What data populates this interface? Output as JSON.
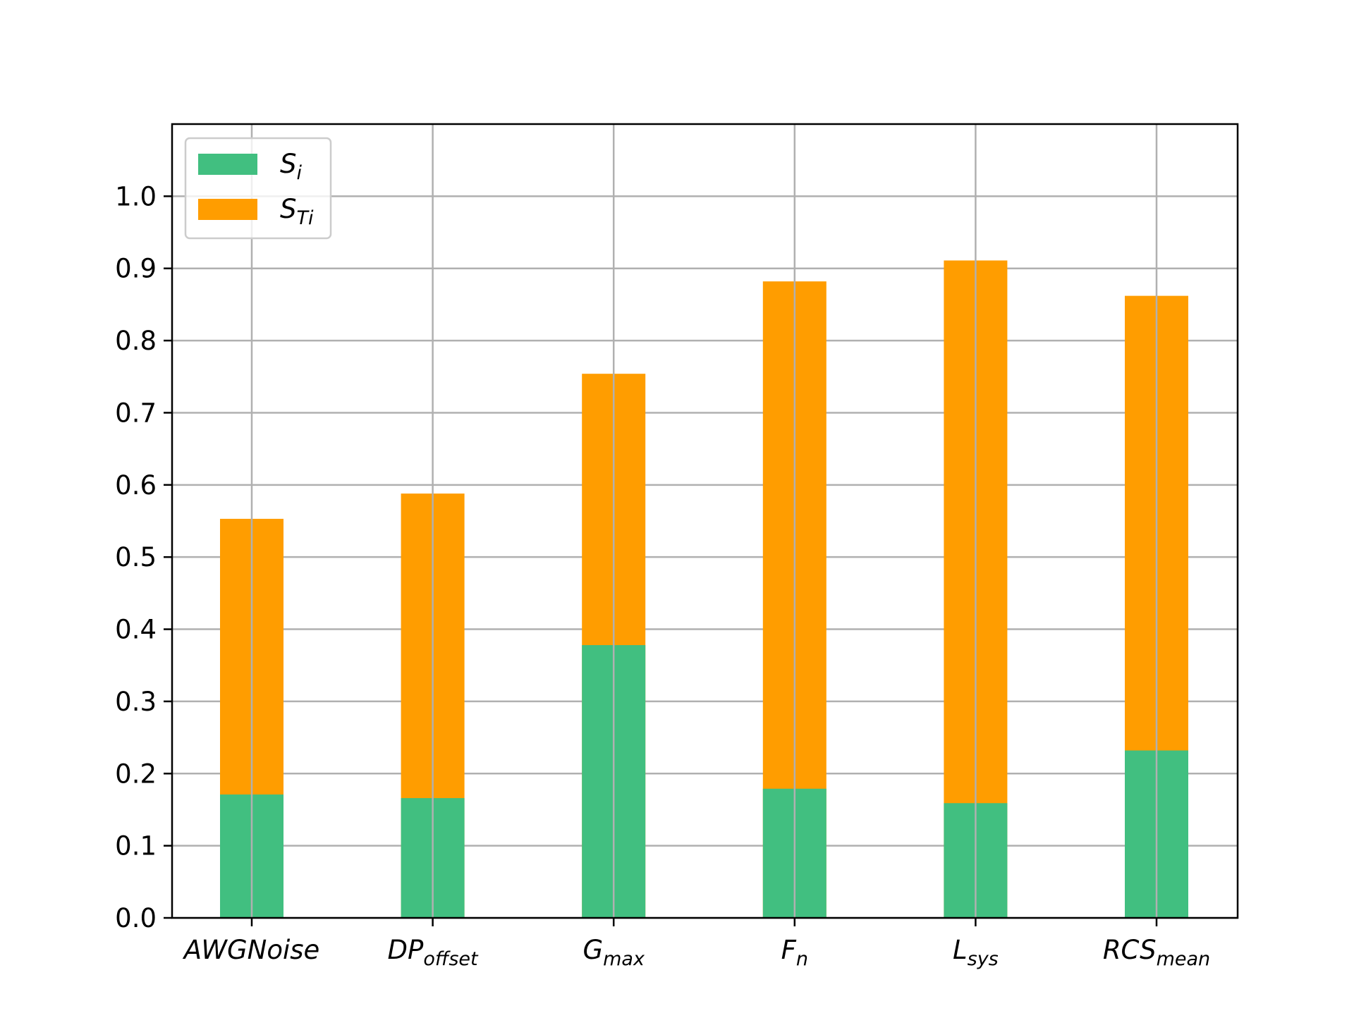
{
  "chart_data": {
    "type": "bar",
    "stacked": true,
    "categories": [
      {
        "base": "AWGNoise",
        "sub": ""
      },
      {
        "base": "DP",
        "sub": "offset"
      },
      {
        "base": "G",
        "sub": "max"
      },
      {
        "base": "F",
        "sub": "n"
      },
      {
        "base": "L",
        "sub": "sys"
      },
      {
        "base": "RCS",
        "sub": "mean"
      }
    ],
    "series": [
      {
        "name": {
          "base": "S",
          "sub": "i"
        },
        "color": "#41bf80",
        "values": [
          0.171,
          0.166,
          0.378,
          0.179,
          0.159,
          0.232
        ]
      },
      {
        "name": {
          "base": "S",
          "sub": "Ti"
        },
        "color": "#ff9d00",
        "values": [
          0.553,
          0.588,
          0.754,
          0.882,
          0.911,
          0.862
        ]
      }
    ],
    "note_series_overlay": "S_Ti bars drawn from 0 behind S_i bars",
    "ylim": [
      0,
      1.1
    ],
    "yticks": [
      "0.0",
      "0.1",
      "0.2",
      "0.3",
      "0.4",
      "0.5",
      "0.6",
      "0.7",
      "0.8",
      "0.9",
      "1.0"
    ],
    "ytick_values": [
      0,
      0.1,
      0.2,
      0.3,
      0.4,
      0.5,
      0.6,
      0.7,
      0.8,
      0.9,
      1.0
    ],
    "grid": true,
    "legend_placement": "top-left",
    "xlabel": "",
    "ylabel": "",
    "title": ""
  }
}
